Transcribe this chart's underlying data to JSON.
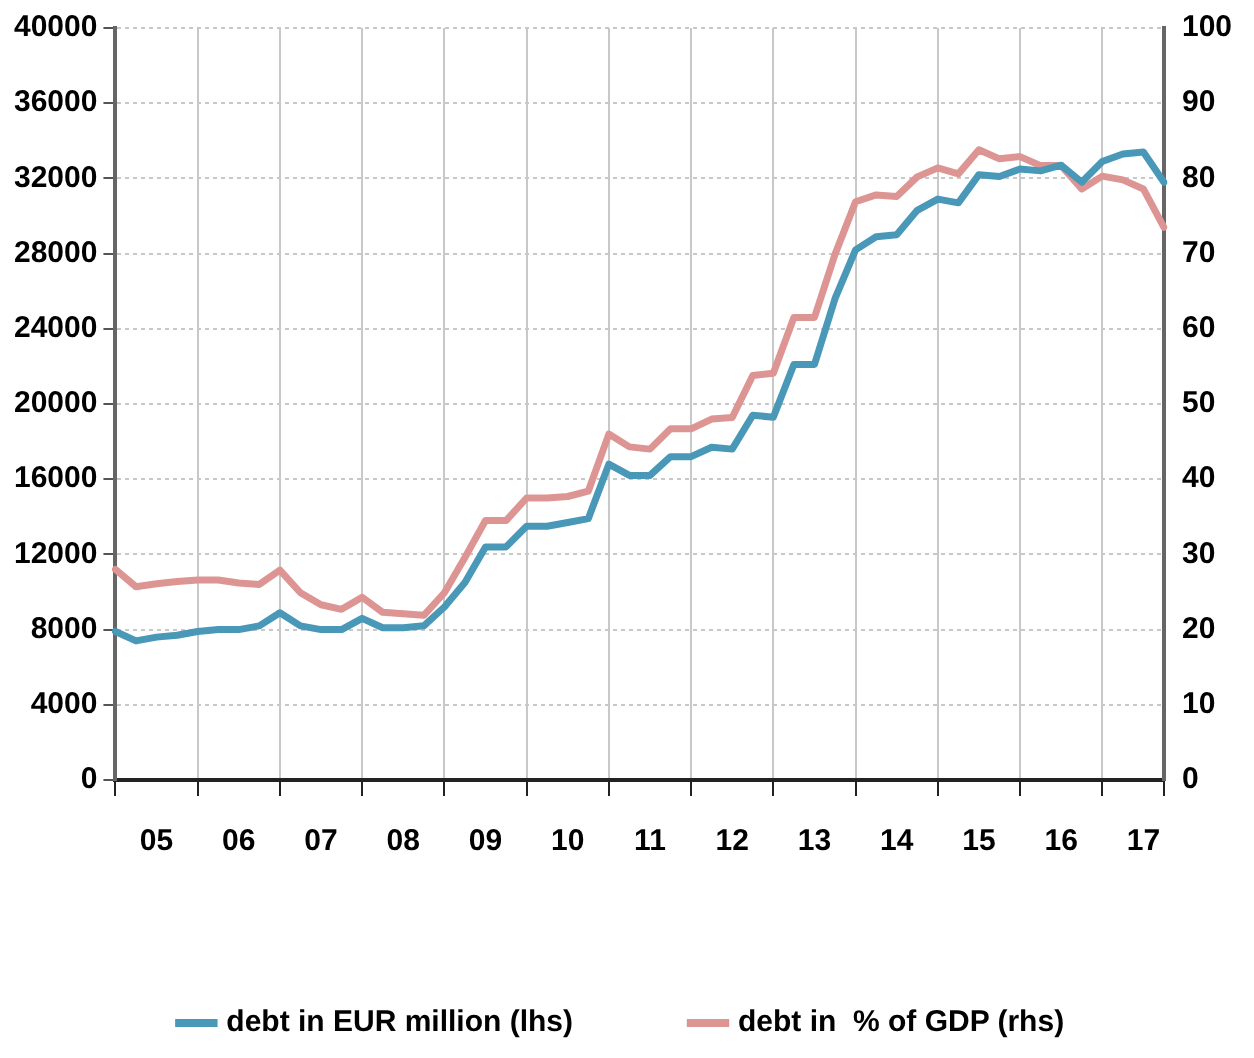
{
  "chart_data": {
    "type": "line",
    "categories": [
      null,
      null,
      "05",
      null,
      null,
      null,
      "06",
      null,
      null,
      null,
      "07",
      null,
      null,
      null,
      "08",
      null,
      null,
      null,
      "09",
      null,
      null,
      null,
      "10",
      null,
      null,
      null,
      "11",
      null,
      null,
      null,
      "12",
      null,
      null,
      null,
      "13",
      null,
      null,
      null,
      "14",
      null,
      null,
      null,
      "15",
      null,
      null,
      null,
      "16",
      null,
      null,
      null,
      "17",
      null
    ],
    "series": [
      {
        "name": "debt in EUR million (lhs)",
        "color": "#4a98b8",
        "axis": "y",
        "values": [
          7900,
          7400,
          7600,
          7700,
          7900,
          8000,
          8000,
          8200,
          8900,
          8200,
          8000,
          8000,
          8600,
          8100,
          8100,
          8200,
          9200,
          10500,
          12400,
          12400,
          13500,
          13500,
          13700,
          13900,
          16800,
          16200,
          16200,
          17200,
          17200,
          17700,
          17600,
          19400,
          19300,
          22100,
          22100,
          25600,
          28200,
          28900,
          29000,
          30300,
          30900,
          30700,
          32200,
          32100,
          32500,
          32400,
          32700,
          31800,
          32900,
          33300,
          33400,
          31800
        ]
      },
      {
        "name": "debt in  % of GDP (rhs)",
        "color": "#dd9593",
        "axis": "y2",
        "values": [
          28.0,
          25.7,
          26.1,
          26.4,
          26.6,
          26.6,
          26.2,
          26.0,
          27.9,
          24.9,
          23.3,
          22.7,
          24.3,
          22.3,
          22.1,
          21.9,
          24.9,
          29.6,
          34.5,
          34.5,
          37.5,
          37.5,
          37.7,
          38.4,
          46.0,
          44.3,
          44.0,
          46.7,
          46.7,
          48.0,
          48.2,
          53.8,
          54.1,
          61.5,
          61.5,
          69.9,
          76.9,
          77.8,
          77.6,
          80.2,
          81.4,
          80.6,
          83.8,
          82.6,
          82.9,
          81.7,
          81.7,
          78.6,
          80.3,
          79.8,
          78.6,
          73.5
        ]
      }
    ],
    "ylim": [
      0,
      40000
    ],
    "yticks": [
      0,
      4000,
      8000,
      12000,
      16000,
      20000,
      24000,
      28000,
      32000,
      36000,
      40000
    ],
    "y2lim": [
      0,
      100
    ],
    "y2ticks": [
      0,
      10,
      20,
      30,
      40,
      50,
      60,
      70,
      80,
      90,
      100
    ],
    "grid": true,
    "legend": "bottom",
    "marker": "none",
    "line_style": "solid"
  }
}
